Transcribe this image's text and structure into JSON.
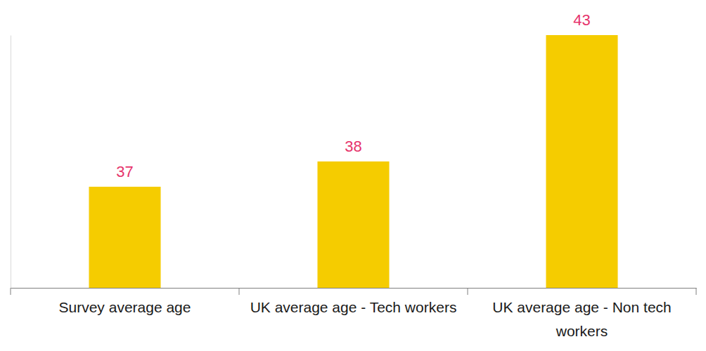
{
  "chart_data": {
    "type": "bar",
    "categories": [
      "Survey average age",
      "UK average age - Tech workers",
      "UK average age - Non tech workers"
    ],
    "values": [
      37,
      38,
      43
    ],
    "color": "#f5cc00",
    "ylim": [
      33,
      43
    ],
    "data_labels": true,
    "tick_labels": "x"
  }
}
